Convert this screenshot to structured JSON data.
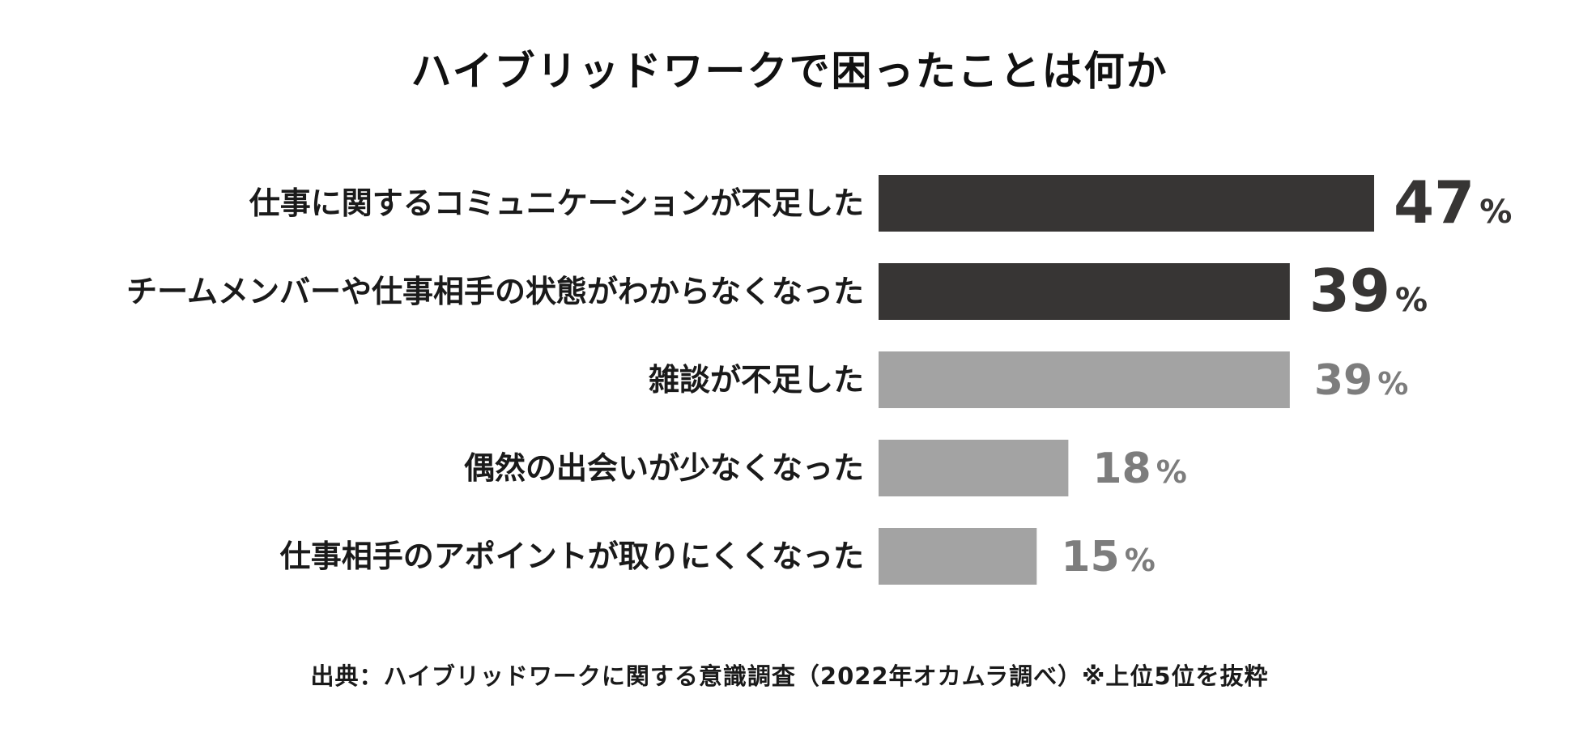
{
  "chart_data": {
    "type": "bar",
    "orientation": "horizontal",
    "title": "ハイブリッドワークで困ったことは何か",
    "categories": [
      "仕事に関するコミュニケーションが不足した",
      "チームメンバーや仕事相手の状態がわからなくなった",
      "雑談が不足した",
      "偶然の出会いが少なくなった",
      "仕事相手のアポイントが取りにくくなった"
    ],
    "values": [
      47,
      39,
      39,
      18,
      15
    ],
    "value_unit": "%",
    "bar_colors": [
      "#373534",
      "#373534",
      "#a3a3a3",
      "#a3a3a3",
      "#a3a3a3"
    ],
    "label_colors": [
      "#373534",
      "#373534",
      "#7d7d7d",
      "#7d7d7d",
      "#7d7d7d"
    ],
    "xlim": [
      0,
      47
    ],
    "grid": false,
    "legend": "none"
  },
  "source": "出典：ハイブリッドワークに関する意識調査（2022年オカムラ調べ）※上位5位を抜粋"
}
